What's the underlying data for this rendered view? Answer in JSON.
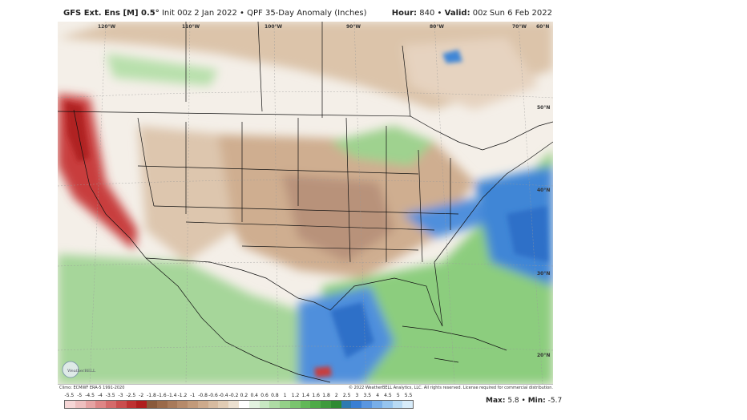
{
  "header": {
    "model": "GFS Ext. Ens [M] 0.5°",
    "init": "Init 00z 2 Jan 2022",
    "sep": "•",
    "product": "QPF 35-Day Anomaly (Inches)",
    "hour_label": "Hour:",
    "hour_value": "840",
    "valid_label": "Valid:",
    "valid_value": "00z Sun 6 Feb 2022"
  },
  "map": {
    "lon_labels": [
      "120°W",
      "110°W",
      "100°W",
      "90°W",
      "80°W",
      "70°W",
      "60°N"
    ],
    "lat_labels": [
      "50°N",
      "40°N",
      "30°N",
      "20°N"
    ],
    "logo_text": "WeatherBELL"
  },
  "footer": {
    "climo": "Climo: ECMWF ERA-5 1991-2020",
    "copyright": "© 2022 WeatherBELL Analytics, LLC. All rights reserved. License required for commercial distribution."
  },
  "legend": {
    "ticks": [
      "-5.5",
      "-5",
      "-4.5",
      "-4",
      "-3.5",
      "-3",
      "-2.5",
      "-2",
      "-1.8",
      "-1.6",
      "-1.4",
      "-1.2",
      "-1",
      "-0.8",
      "-0.6",
      "-0.4",
      "-0.2",
      "0.2",
      "0.4",
      "0.6",
      "0.8",
      "1",
      "1.2",
      "1.4",
      "1.6",
      "1.8",
      "2",
      "2.5",
      "3",
      "3.5",
      "4",
      "4.5",
      "5",
      "5.5"
    ],
    "colors": [
      "#f6d6d6",
      "#eebfbf",
      "#e6a3a3",
      "#de8686",
      "#d46a6a",
      "#ca4e4e",
      "#be3232",
      "#b01e1e",
      "#8a5a3c",
      "#9a6a4a",
      "#a87a5a",
      "#b68a6a",
      "#c29a7a",
      "#cdaa8c",
      "#d7bba0",
      "#e1ccb4",
      "#ece0d0",
      "#ffffff",
      "#e2f2df",
      "#c8e8c2",
      "#aedca4",
      "#94d088",
      "#7ac46e",
      "#62b858",
      "#4eaa48",
      "#3e9a3c",
      "#2e8a32",
      "#2e7ab0",
      "#3a7fd4",
      "#5a96e0",
      "#78aee8",
      "#96c4ee",
      "#b8daf4",
      "#d8ecfa"
    ]
  },
  "stats": {
    "max_label": "Max:",
    "max_value": "5.8",
    "min_label": "Min:",
    "min_value": "-5.7"
  }
}
